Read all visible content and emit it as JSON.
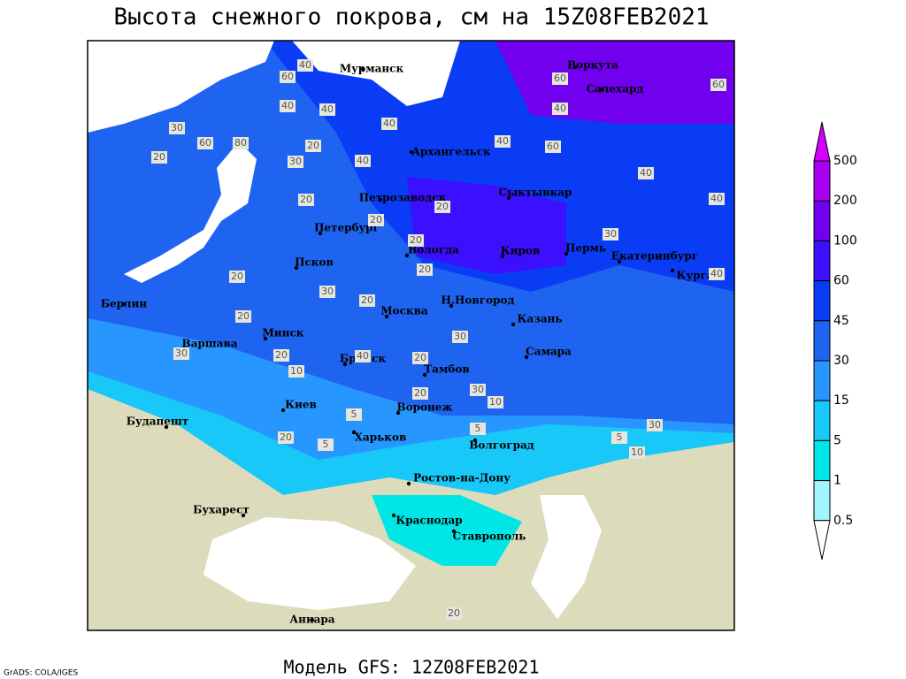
{
  "header": {
    "title": "Высота снежного покрова, см на 15Z08FEB2021"
  },
  "footer": {
    "model": "Модель GFS: 12Z08FEB2021",
    "credit": "GrADS: COLA/IGES"
  },
  "legend": {
    "levels": [
      500,
      200,
      100,
      60,
      45,
      30,
      15,
      5,
      1,
      0.5
    ],
    "colors": [
      "#d200ff",
      "#a800f0",
      "#7000ee",
      "#3a10ff",
      "#0a3cf5",
      "#1e64f0",
      "#2896ff",
      "#18c8f8",
      "#00e6e6",
      "#a0f6ff",
      "#ffffff"
    ]
  },
  "cities": [
    "Мурманск",
    "Воркута",
    "Салехард",
    "Архангельск",
    "Петрозаводск",
    "Сыктывкар",
    "Петербург",
    "Вологда",
    "Киров",
    "Пермь",
    "Екатеринбург",
    "Курган",
    "Псков",
    "Берлин",
    "Москва",
    "Н.Новгород",
    "Казань",
    "Минск",
    "Варшава",
    "Брянск",
    "Тамбов",
    "Самара",
    "Киев",
    "Воронеж",
    "Будапешт",
    "Харьков",
    "Волгоград",
    "Ростов-на-Дону",
    "Бухарест",
    "Краснодар",
    "Ставрополь",
    "Анкара"
  ],
  "contour_labels": [
    40,
    60,
    40,
    40,
    60,
    40,
    30,
    60,
    80,
    20,
    30,
    20,
    40,
    40,
    40,
    60,
    40,
    40,
    40,
    60,
    20,
    20,
    30,
    20,
    20,
    20,
    20,
    30,
    20,
    20,
    10,
    30,
    20,
    20,
    30,
    40,
    20,
    10,
    30,
    5,
    5,
    20,
    5,
    10,
    5,
    30,
    20
  ]
}
